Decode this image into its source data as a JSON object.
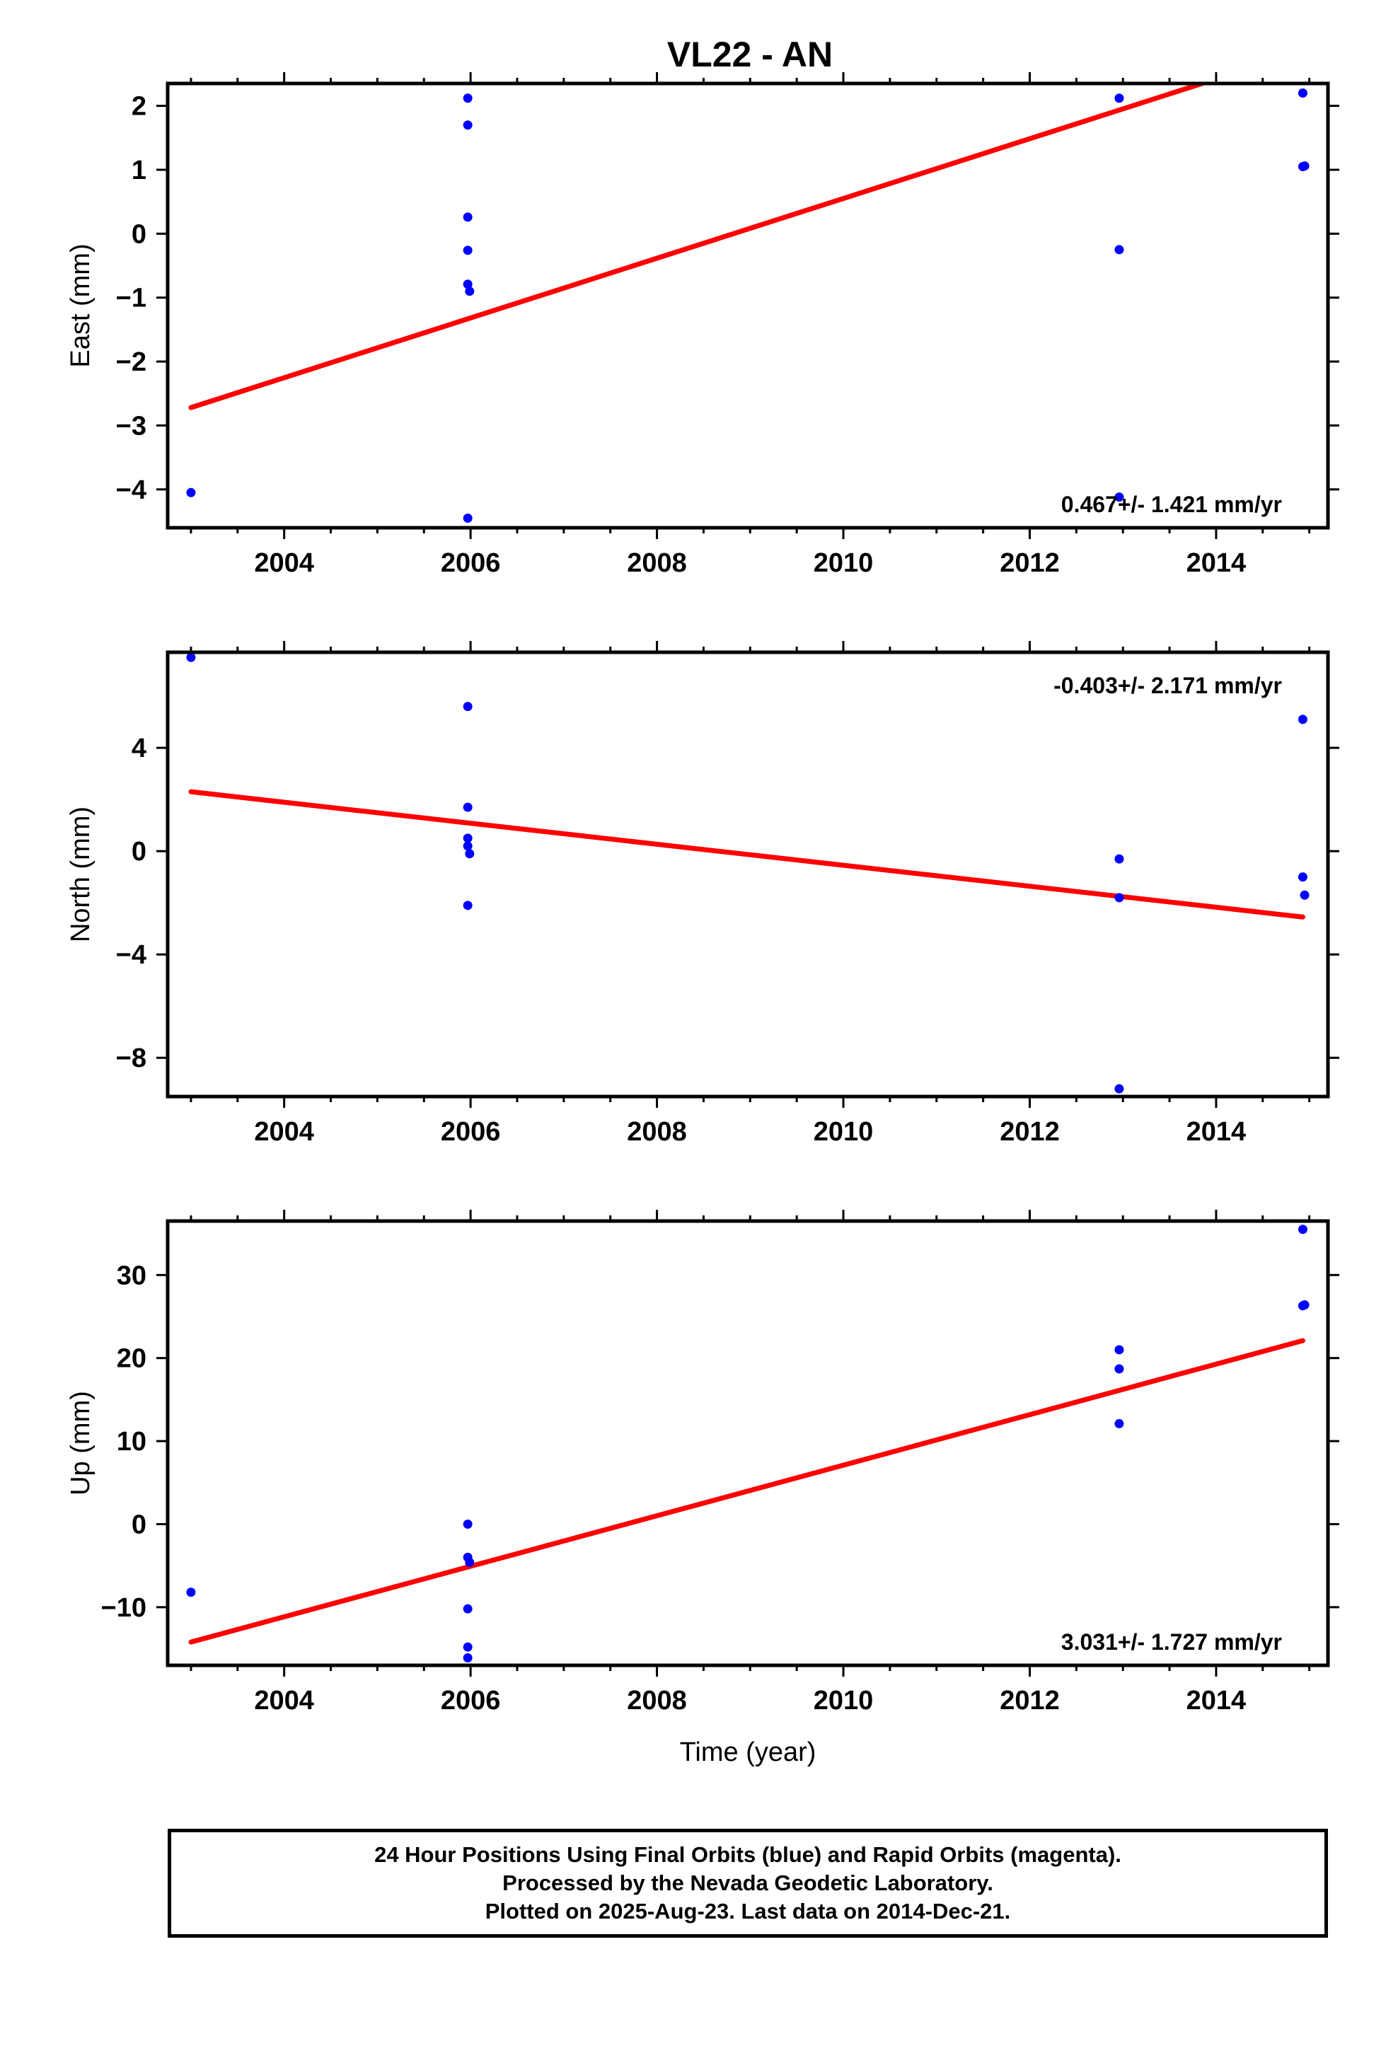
{
  "title": "VL22 - AN",
  "xlabel": "Time (year)",
  "caption": [
    "24 Hour Positions Using Final Orbits (blue) and Rapid Orbits (magenta).",
    "Processed by the Nevada Geodetic Laboratory.",
    "Plotted on 2025-Aug-23. Last data on 2014-Dec-21."
  ],
  "colors": {
    "points": "#0000ff",
    "trend": "#ff0000",
    "axes": "#000000"
  },
  "chart_data": [
    {
      "type": "scatter",
      "ylabel": "East (mm)",
      "rate_label": "0.467+/- 1.421 mm/yr",
      "xlim": [
        2002.75,
        2015.2
      ],
      "ylim": [
        -4.6,
        2.35
      ],
      "xticks": [
        2004,
        2006,
        2008,
        2010,
        2012,
        2014
      ],
      "yticks": [
        -4,
        -3,
        -2,
        -1,
        0,
        1,
        2
      ],
      "ytick_labels": [
        "−4",
        "−3",
        "−2",
        "−1",
        "0",
        "1",
        "2"
      ],
      "points": [
        [
          2003.0,
          -4.05
        ],
        [
          2005.97,
          2.12
        ],
        [
          2005.97,
          1.7
        ],
        [
          2005.97,
          0.26
        ],
        [
          2005.97,
          -0.26
        ],
        [
          2005.97,
          -0.79
        ],
        [
          2005.99,
          -0.9
        ],
        [
          2005.97,
          -4.45
        ],
        [
          2012.96,
          2.12
        ],
        [
          2012.96,
          -0.25
        ],
        [
          2012.96,
          -4.12
        ],
        [
          2014.93,
          2.2
        ],
        [
          2014.93,
          1.05
        ],
        [
          2014.95,
          1.06
        ]
      ],
      "trend": [
        [
          2003.0,
          -2.72
        ],
        [
          2013.85,
          2.35
        ]
      ]
    },
    {
      "type": "scatter",
      "ylabel": "North (mm)",
      "rate_label": "-0.403+/- 2.171 mm/yr",
      "xlim": [
        2002.75,
        2015.2
      ],
      "ylim": [
        -9.5,
        7.7
      ],
      "xticks": [
        2004,
        2006,
        2008,
        2010,
        2012,
        2014
      ],
      "yticks": [
        -8,
        -4,
        0,
        4
      ],
      "ytick_labels": [
        "−8",
        "−4",
        "0",
        "4"
      ],
      "points": [
        [
          2003.0,
          7.5
        ],
        [
          2005.97,
          5.6
        ],
        [
          2005.97,
          1.7
        ],
        [
          2005.97,
          0.5
        ],
        [
          2005.97,
          0.2
        ],
        [
          2005.99,
          -0.1
        ],
        [
          2005.97,
          -2.1
        ],
        [
          2012.96,
          -0.3
        ],
        [
          2012.96,
          -1.8
        ],
        [
          2012.96,
          -9.2
        ],
        [
          2014.93,
          5.1
        ],
        [
          2014.93,
          -1.0
        ],
        [
          2014.95,
          -1.7
        ]
      ],
      "trend": [
        [
          2003.0,
          2.3
        ],
        [
          2014.93,
          -2.55
        ]
      ]
    },
    {
      "type": "scatter",
      "ylabel": "Up (mm)",
      "rate_label": "3.031+/- 1.727 mm/yr",
      "xlim": [
        2002.75,
        2015.2
      ],
      "ylim": [
        -17.0,
        36.5
      ],
      "xticks": [
        2004,
        2006,
        2008,
        2010,
        2012,
        2014
      ],
      "yticks": [
        -10,
        0,
        10,
        20,
        30
      ],
      "ytick_labels": [
        "−10",
        "0",
        "10",
        "20",
        "30"
      ],
      "points": [
        [
          2003.0,
          -8.2
        ],
        [
          2005.97,
          0.0
        ],
        [
          2005.97,
          -4.0
        ],
        [
          2005.99,
          -4.6
        ],
        [
          2005.97,
          -10.2
        ],
        [
          2005.97,
          -14.8
        ],
        [
          2005.97,
          -16.1
        ],
        [
          2012.96,
          21.0
        ],
        [
          2012.96,
          18.7
        ],
        [
          2012.96,
          12.1
        ],
        [
          2014.93,
          35.5
        ],
        [
          2014.93,
          26.3
        ],
        [
          2014.95,
          26.4
        ]
      ],
      "trend": [
        [
          2003.0,
          -14.2
        ],
        [
          2014.93,
          22.1
        ]
      ]
    }
  ]
}
